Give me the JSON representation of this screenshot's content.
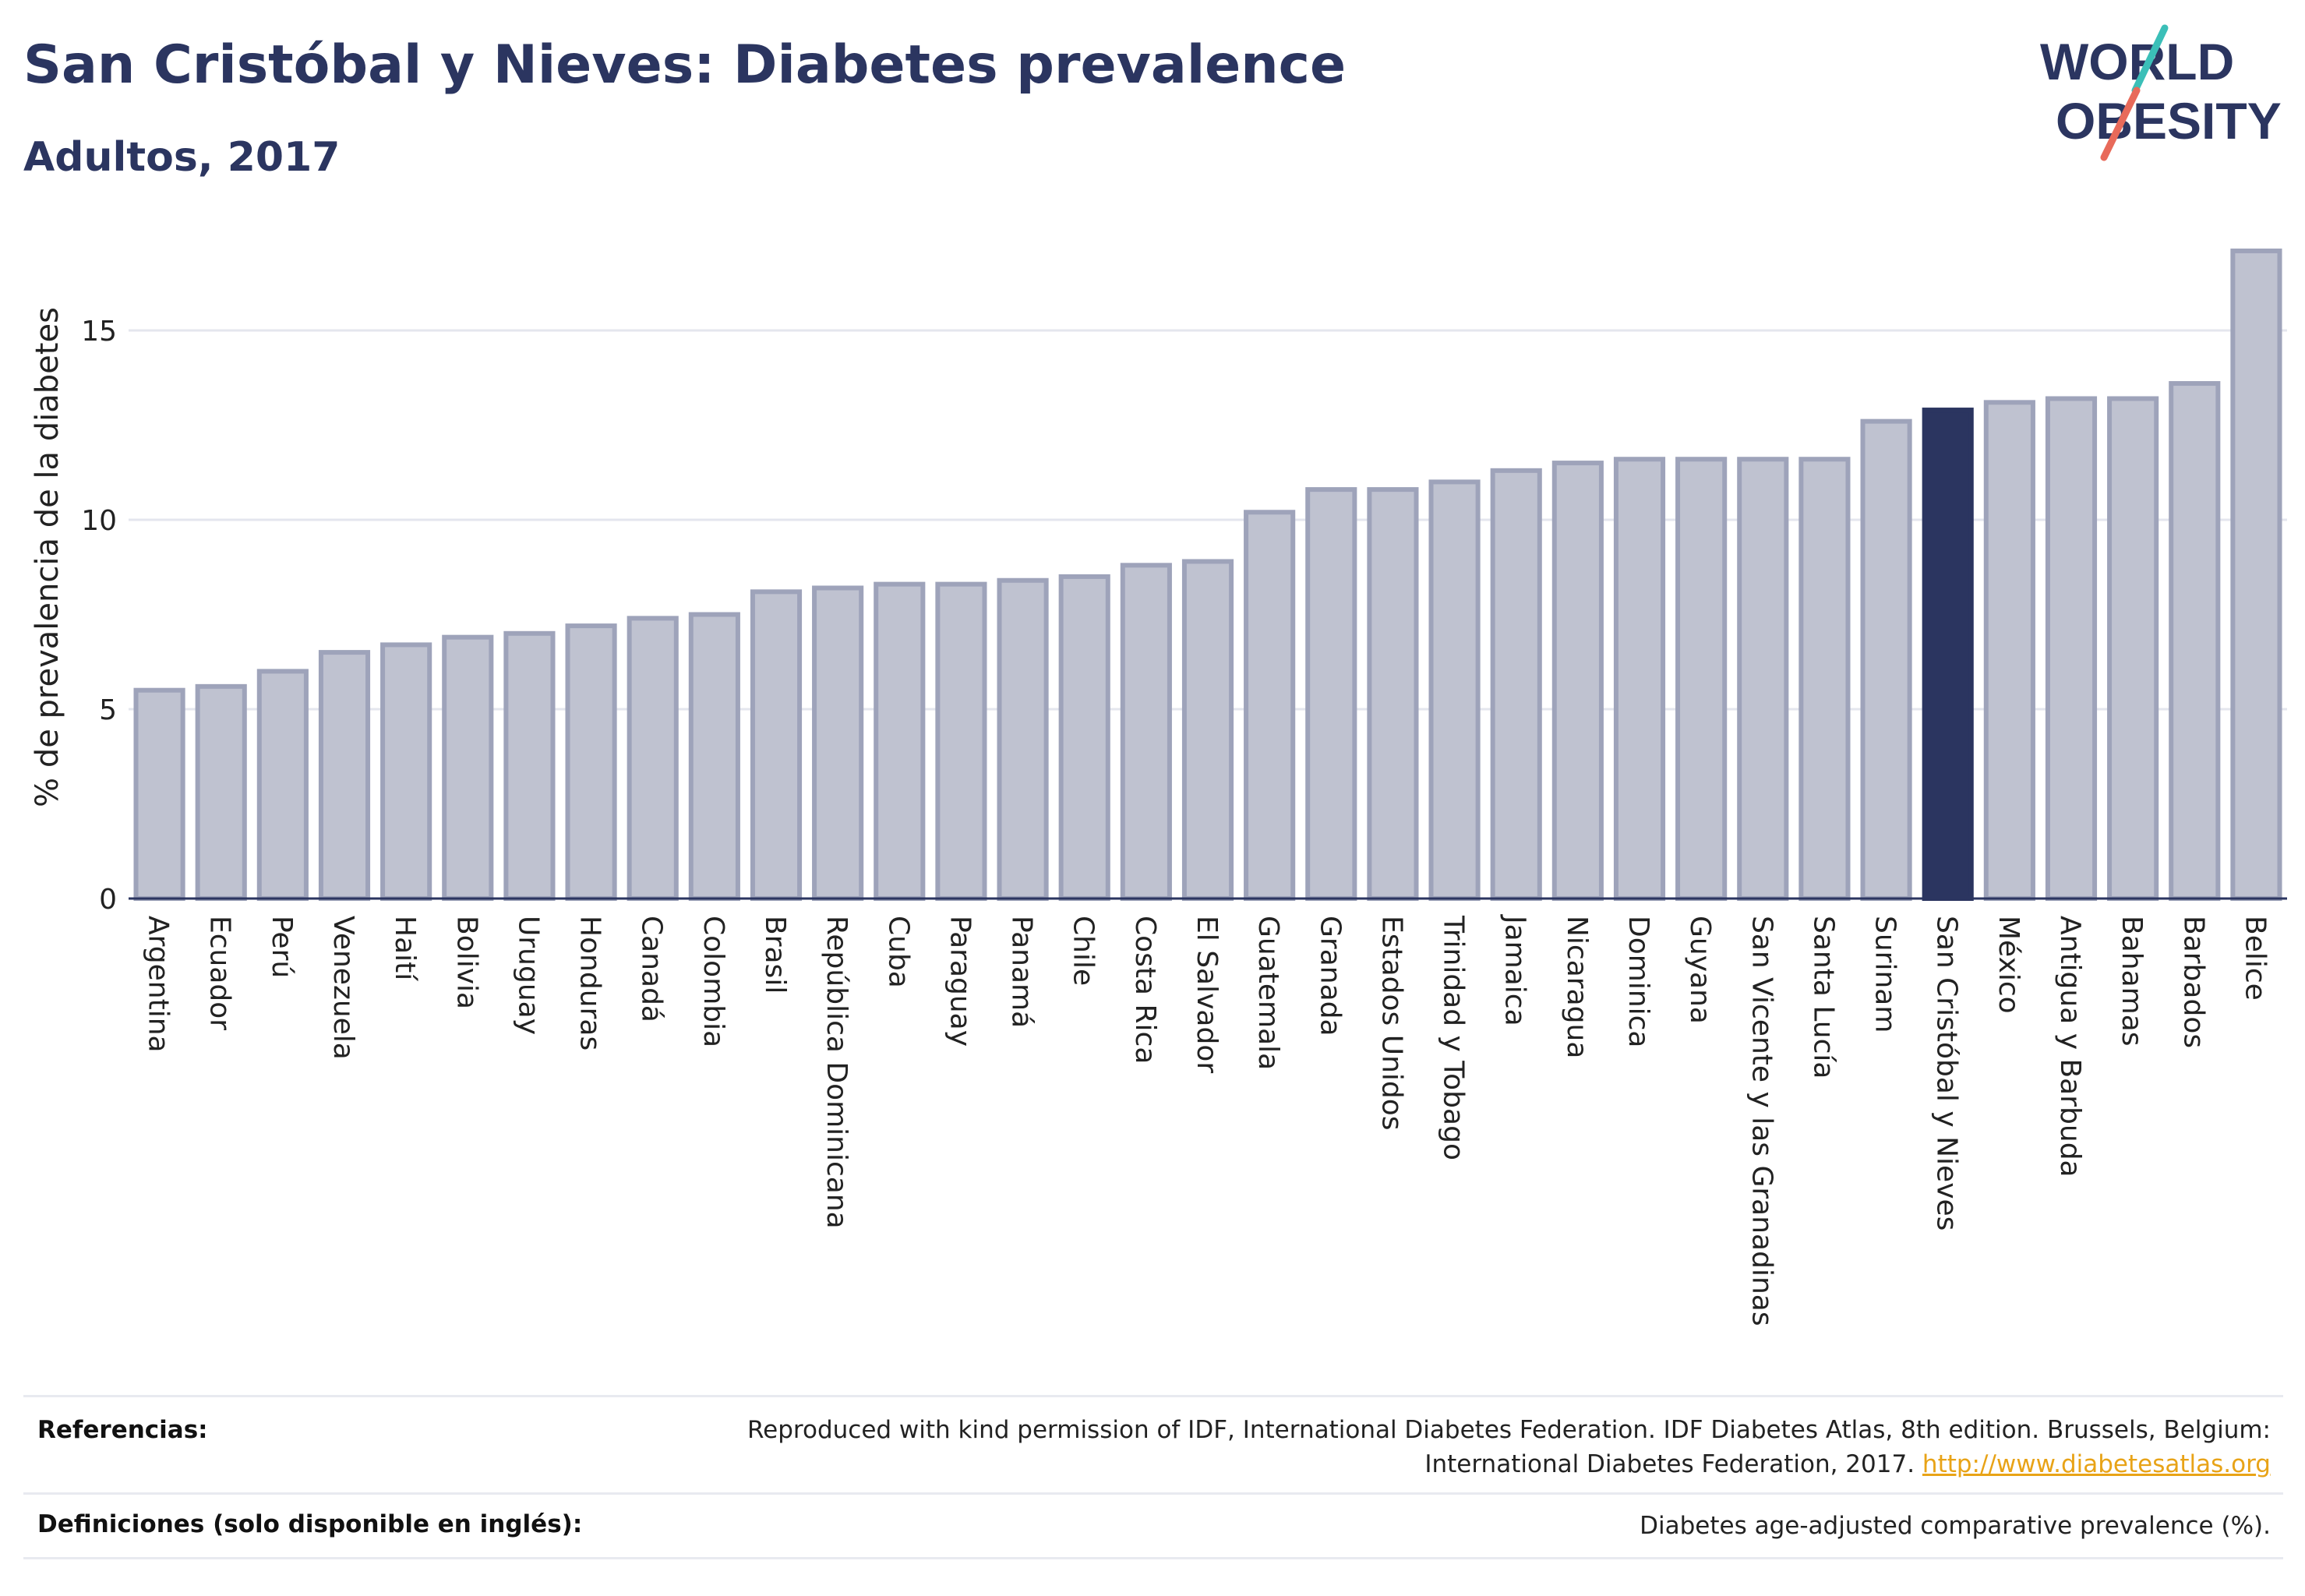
{
  "title": "San Cristóbal y Nieves: Diabetes prevalence",
  "subtitle": "Adultos, 2017",
  "logo": {
    "line1": "WORLD",
    "line2": "OBESITY"
  },
  "footer": {
    "references_label": "Referencias:",
    "references_text_1": "Reproduced with kind permission of IDF, International Diabetes Federation. IDF Diabetes Atlas, 8th edition. Brussels, Belgium:",
    "references_text_2": "International Diabetes Federation, 2017.",
    "references_link": "http://www.diabetesatlas.org",
    "definitions_label": "Definiciones (solo disponible en inglés):",
    "definitions_text": "Diabetes age-adjusted comparative prevalence (%)."
  },
  "colors": {
    "bar": "#bfc2d0",
    "bar_border": "#9ea3ba",
    "highlight": "#2b3560",
    "title": "#2b3560",
    "link": "#e8a317"
  },
  "chart_data": {
    "type": "bar",
    "ylabel": "% de prevalencia de la diabetes",
    "ylim": [
      0,
      17.5
    ],
    "yticks": [
      0,
      5,
      10,
      15
    ],
    "grid": true,
    "highlight": "San Cristóbal y Nieves",
    "categories": [
      "Argentina",
      "Ecuador",
      "Perú",
      "Venezuela",
      "Haití",
      "Bolivia",
      "Uruguay",
      "Honduras",
      "Canadá",
      "Colombia",
      "Brasil",
      "República Dominicana",
      "Cuba",
      "Paraguay",
      "Panamá",
      "Chile",
      "Costa Rica",
      "El Salvador",
      "Guatemala",
      "Granada",
      "Estados Unidos",
      "Trinidad y Tobago",
      "Jamaica",
      "Nicaragua",
      "Dominica",
      "Guyana",
      "San Vicente y las Granadinas",
      "Santa Lucía",
      "Surinam",
      "San Cristóbal y Nieves",
      "México",
      "Antigua y Barbuda",
      "Bahamas",
      "Barbados",
      "Belice"
    ],
    "values": [
      5.5,
      5.6,
      6.0,
      6.5,
      6.7,
      6.9,
      7.0,
      7.2,
      7.4,
      7.5,
      8.1,
      8.2,
      8.3,
      8.3,
      8.4,
      8.5,
      8.8,
      8.9,
      10.2,
      10.8,
      10.8,
      11.0,
      11.3,
      11.5,
      11.6,
      11.6,
      11.6,
      11.6,
      12.6,
      12.9,
      13.1,
      13.2,
      13.2,
      13.6,
      17.1
    ]
  }
}
